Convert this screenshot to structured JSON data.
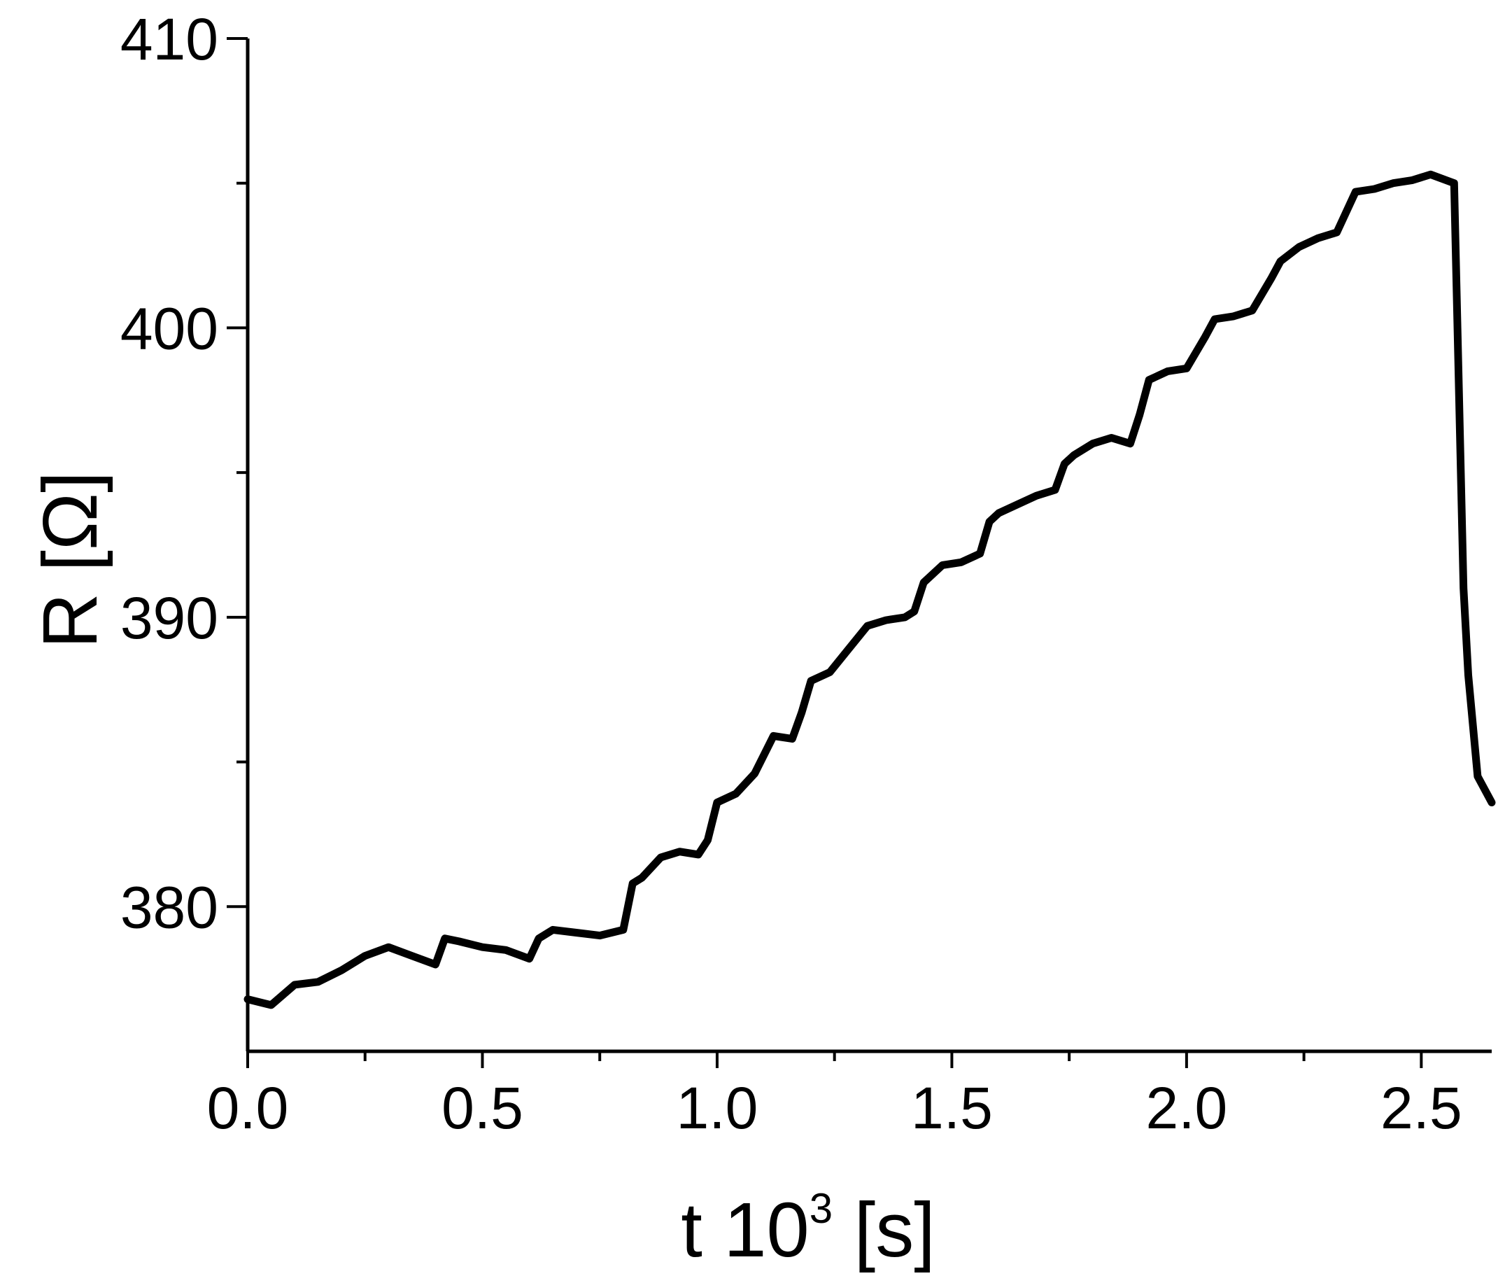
{
  "chart_data": {
    "type": "line",
    "xlabel": "t 10³ [s]",
    "xlabel_parts": {
      "main": "t 10",
      "sup": "3",
      "unit": " [s]"
    },
    "ylabel": "R [Ω]",
    "xlim": [
      0.0,
      2.65
    ],
    "ylim": [
      375,
      410
    ],
    "x_ticks": [
      0.0,
      0.5,
      1.0,
      1.5,
      2.0,
      2.5
    ],
    "x_tick_labels": [
      "0.0",
      "0.5",
      "1.0",
      "1.5",
      "2.0",
      "2.5"
    ],
    "y_ticks": [
      380,
      390,
      400,
      410
    ],
    "y_tick_labels": [
      "380",
      "390",
      "400",
      "410"
    ],
    "grid": false,
    "legend": "none",
    "line_color": "#000000",
    "series": [
      {
        "x": [
          0.0,
          0.05,
          0.1,
          0.15,
          0.2,
          0.25,
          0.3,
          0.35,
          0.4,
          0.42,
          0.45,
          0.5,
          0.55,
          0.6,
          0.62,
          0.65,
          0.7,
          0.75,
          0.8,
          0.82,
          0.84,
          0.88,
          0.92,
          0.96,
          0.98,
          1.0,
          1.04,
          1.08,
          1.12,
          1.16,
          1.18,
          1.2,
          1.24,
          1.28,
          1.32,
          1.36,
          1.4,
          1.42,
          1.44,
          1.48,
          1.52,
          1.56,
          1.58,
          1.6,
          1.64,
          1.68,
          1.72,
          1.74,
          1.76,
          1.8,
          1.84,
          1.88,
          1.9,
          1.92,
          1.96,
          2.0,
          2.04,
          2.06,
          2.1,
          2.14,
          2.18,
          2.2,
          2.24,
          2.28,
          2.32,
          2.36,
          2.4,
          2.44,
          2.48,
          2.52,
          2.57,
          2.58,
          2.59,
          2.6,
          2.62,
          2.65
        ],
        "y": [
          376.8,
          376.6,
          377.3,
          377.4,
          377.8,
          378.3,
          378.6,
          378.3,
          378.0,
          378.9,
          378.8,
          378.6,
          378.5,
          378.2,
          378.9,
          379.2,
          379.1,
          379.0,
          379.2,
          380.8,
          381.0,
          381.7,
          381.9,
          381.8,
          382.3,
          383.6,
          383.9,
          384.6,
          385.9,
          385.8,
          386.7,
          387.8,
          388.1,
          388.9,
          389.7,
          389.9,
          390.0,
          390.2,
          391.2,
          391.8,
          391.9,
          392.2,
          393.3,
          393.6,
          393.9,
          394.2,
          394.4,
          395.3,
          395.6,
          396.0,
          396.2,
          396.0,
          397.0,
          398.2,
          398.5,
          398.6,
          399.7,
          400.3,
          400.4,
          400.6,
          401.7,
          402.3,
          402.8,
          403.1,
          403.3,
          404.7,
          404.8,
          405.0,
          405.1,
          405.3,
          405.0,
          398.0,
          391.0,
          388.0,
          384.5,
          383.6
        ]
      }
    ]
  }
}
